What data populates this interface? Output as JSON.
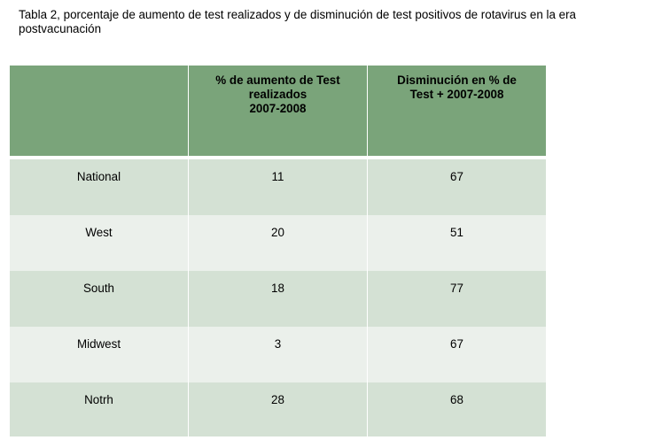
{
  "caption": "Tabla 2, porcentaje de aumento  de test realizados y de disminución de test  positivos de rotavirus en la era postvacunación",
  "table": {
    "headers": [
      "",
      "% de aumento de Test\nrealizados\n2007-2008",
      "Disminución en % de\nTest + 2007-2008"
    ],
    "rows": [
      {
        "region": "National",
        "aumento": "11",
        "disminucion": "67"
      },
      {
        "region": "West",
        "aumento": "20",
        "disminucion": "51"
      },
      {
        "region": "South",
        "aumento": "18",
        "disminucion": "77"
      },
      {
        "region": "Midwest",
        "aumento": "3",
        "disminucion": "67"
      },
      {
        "region": "Notrh",
        "aumento": "28",
        "disminucion": "68"
      }
    ]
  },
  "colors": {
    "header_bg": "#7aa47a",
    "row_odd_bg": "#d4e1d4",
    "row_even_bg": "#ebf0eb"
  }
}
